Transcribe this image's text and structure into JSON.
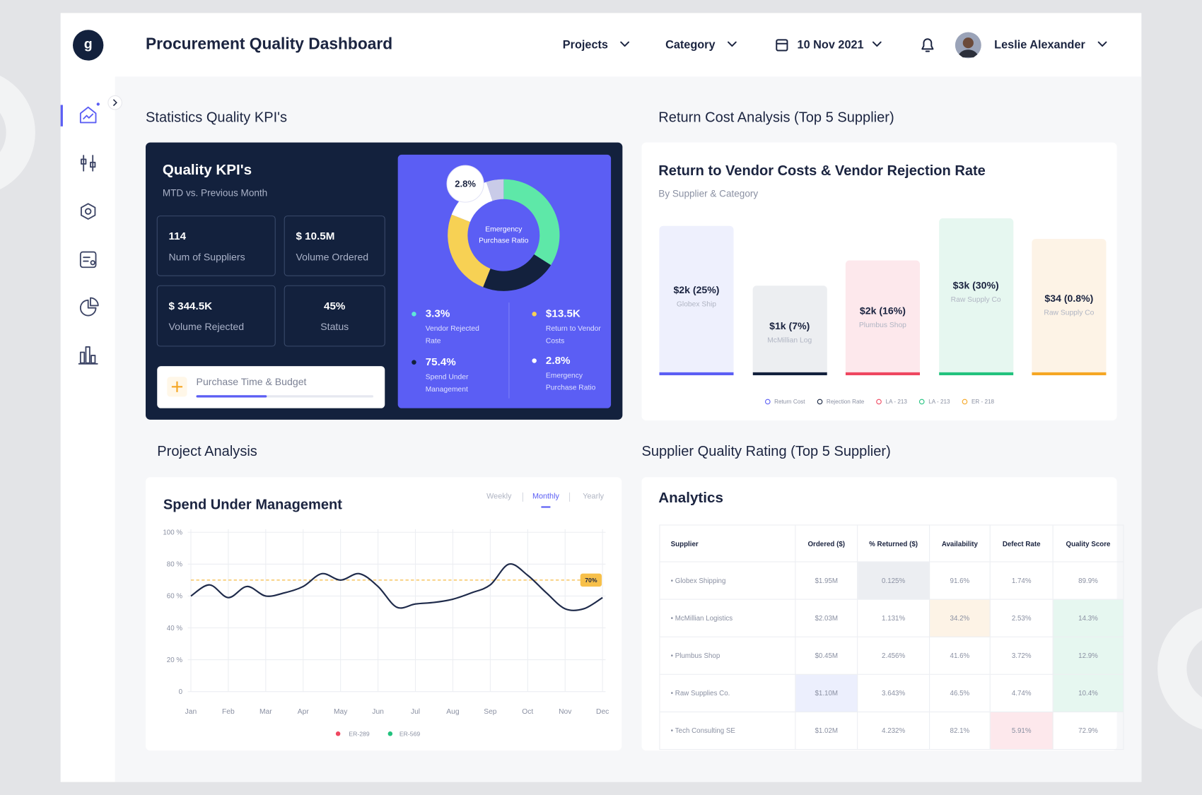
{
  "header": {
    "logo": "g",
    "title": "Procurement Quality Dashboard",
    "filters": [
      "Projects",
      "Category"
    ],
    "date": "10 Nov 2021",
    "user": "Leslie Alexander"
  },
  "kpi_section": {
    "heading": "Statistics Quality KPI's",
    "title": "Quality KPI's",
    "subtitle": "MTD vs. Previous Month",
    "cards": [
      {
        "value": "114",
        "label": "Num of Suppliers"
      },
      {
        "value": "$ 10.5M",
        "label": "Volume Ordered"
      },
      {
        "value": "$ 344.5K",
        "label": "Volume Rejected"
      },
      {
        "value": "45%",
        "label": "Status"
      }
    ],
    "progress": {
      "label": "Purchase Time & Budget",
      "value": 40
    },
    "donut": {
      "badge": "2.8%",
      "center_label": "Emergency Purchase Ratio",
      "segments": [
        {
          "value": 34,
          "color": "#5ee8a8"
        },
        {
          "value": 22,
          "color": "#13213d"
        },
        {
          "value": 25,
          "color": "#f7d154"
        },
        {
          "value": 14,
          "color": "#ffffff"
        },
        {
          "value": 5,
          "color": "#c9cbe8"
        }
      ]
    },
    "stats": [
      {
        "value": "3.3%",
        "label": "Vendor Rejected Rate",
        "color": "#5ee8d8"
      },
      {
        "value": "$13.5K",
        "label": "Return to Vendor Costs",
        "color": "#f7d154"
      },
      {
        "value": "75.4%",
        "label": "Spend Under Management",
        "color": "#13213d"
      },
      {
        "value": "2.8%",
        "label": "Emergency Purchase Ratio",
        "color": "#ffffff"
      }
    ]
  },
  "return_cost": {
    "heading": "Return Cost Analysis (Top 5 Supplier)",
    "title": "Return to Vendor Costs & Vendor Rejection Rate",
    "subtitle": "By Supplier & Category",
    "bars": [
      {
        "label": "$2k (25%)",
        "supplier": "Globex Ship",
        "color": "#5b5ef4",
        "background": "#eef0fd"
      },
      {
        "label": "$1k (7%)",
        "supplier": "McMillian Log",
        "color": "#13213d",
        "background": "#eceef1"
      },
      {
        "label": "$2k (16%)",
        "supplier": "Plumbus Shop",
        "color": "#ef4760",
        "background": "#fde8ec"
      },
      {
        "label": "$3k (30%)",
        "supplier": "Raw Supply Co",
        "color": "#22c27e",
        "background": "#e6f7f0"
      },
      {
        "label": "$34 (0.8%)",
        "supplier": "Raw Supply Co",
        "color": "#f5a623",
        "background": "#fdf3e6"
      }
    ],
    "legend": [
      {
        "name": "Return Cost",
        "color": "#5b5ef4"
      },
      {
        "name": "Rejection Rate",
        "color": "#13213d"
      },
      {
        "name": "LA - 213",
        "color": "#ef4760"
      },
      {
        "name": "LA - 213",
        "color": "#22c27e"
      },
      {
        "name": "ER - 218",
        "color": "#f5a623"
      }
    ]
  },
  "project_heading": "Project Analysis",
  "chart_data": {
    "type": "line",
    "title": "Spend Under Management",
    "periods": [
      "Weekly",
      "Monthly",
      "Yearly"
    ],
    "active_period": 1,
    "x": [
      0,
      0.5,
      1,
      1.5,
      2,
      2.5,
      3,
      3.5,
      4,
      4.5,
      5,
      5.5,
      6,
      6.5,
      7,
      7.5,
      8,
      8.5,
      9,
      9.5,
      10,
      10.5,
      11
    ],
    "series": [
      {
        "color": "#1e2a4a",
        "values": [
          60,
          67,
          59,
          66,
          60,
          62,
          66,
          74,
          70,
          74,
          66,
          53,
          55,
          56,
          58,
          62,
          67,
          80,
          73,
          62,
          52,
          52,
          59
        ]
      }
    ],
    "xlim": [
      0,
      11
    ],
    "xticks": [
      {
        "value": 0,
        "label": "Jan"
      },
      {
        "value": 1,
        "label": "Feb"
      },
      {
        "value": 2,
        "label": "Mar"
      },
      {
        "value": 3,
        "label": "Apr"
      },
      {
        "value": 4,
        "label": "May"
      },
      {
        "value": 5,
        "label": "Jun"
      },
      {
        "value": 6,
        "label": "Jul"
      },
      {
        "value": 7,
        "label": "Aug"
      },
      {
        "value": 8,
        "label": "Sep"
      },
      {
        "value": 9,
        "label": "Oct"
      },
      {
        "value": 10,
        "label": "Nov"
      },
      {
        "value": 11,
        "label": "Dec"
      }
    ],
    "ylim": [
      0,
      100
    ],
    "yticks": [
      0,
      {
        "value": 20,
        "label": "20 %"
      },
      {
        "value": 40,
        "label": "40 %"
      },
      {
        "value": 60,
        "label": "60 %"
      },
      {
        "value": 80,
        "label": "80 %"
      },
      {
        "value": 100,
        "label": "100 %"
      }
    ],
    "grid": true,
    "target": {
      "value": 70,
      "label": "70%",
      "color": "#f5b942"
    },
    "legend": [
      {
        "name": "ER-289",
        "color": "#ef4760"
      },
      {
        "name": "ER-569",
        "color": "#22c27e"
      }
    ]
  },
  "supplier_rating": {
    "heading": "Supplier Quality Rating (Top 5 Supplier)",
    "title": "Analytics",
    "table": {
      "columns": [
        "Supplier",
        "Ordered ($)",
        "% Returned ($)",
        "Availability",
        "Defect Rate",
        "Quality Score"
      ],
      "rows": [
        [
          "Globex Shipping",
          "$1.95M",
          "0.125%",
          "91.6%",
          "1.74%",
          "89.9%"
        ],
        [
          "McMillian Logistics",
          "$2.03M",
          "1.131%",
          "34.2%",
          "2.53%",
          "14.3%"
        ],
        [
          "Plumbus Shop",
          "$0.45M",
          "2.456%",
          "41.6%",
          "3.72%",
          "12.9%"
        ],
        [
          "Raw Supplies Co.",
          "$1.10M",
          "3.643%",
          "46.5%",
          "4.74%",
          "10.4%"
        ],
        [
          "Tech Consulting SE",
          "$1.02M",
          "4.232%",
          "82.1%",
          "5.91%",
          "72.9%"
        ]
      ]
    }
  }
}
